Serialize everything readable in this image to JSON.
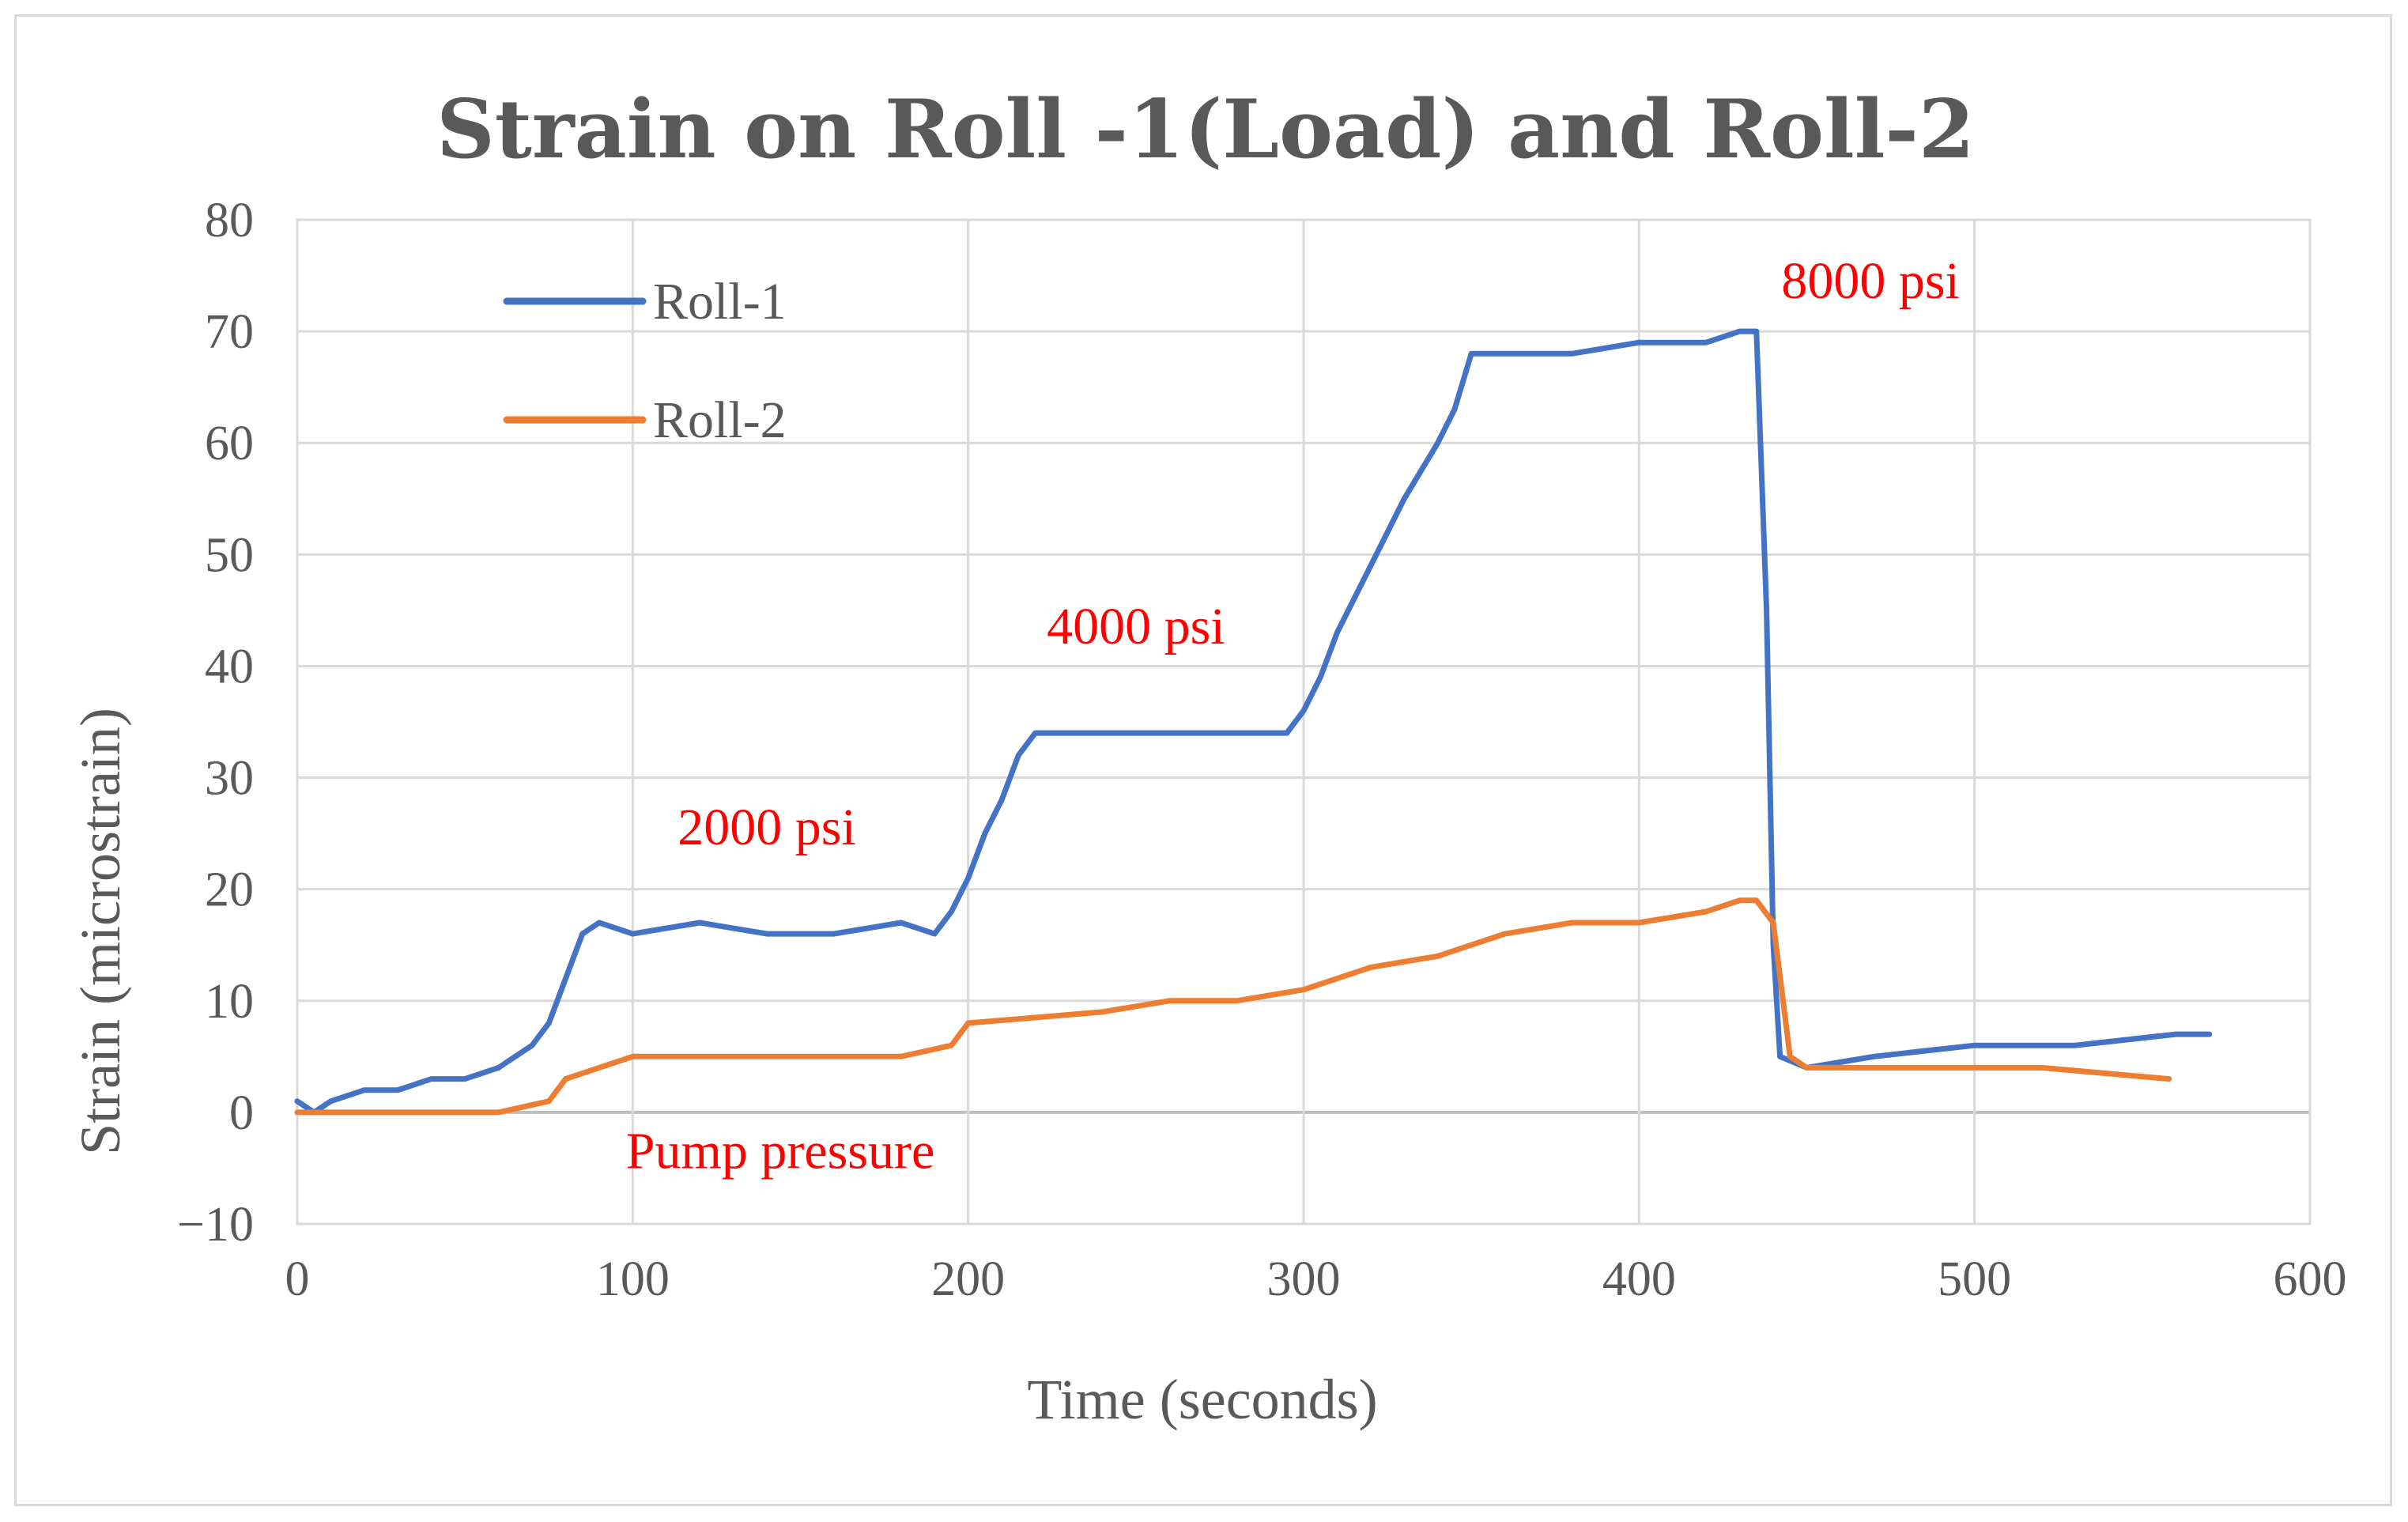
{
  "chart_data": {
    "type": "line",
    "title": "Strain on Roll -1(Load) and Roll-2",
    "xlabel": "Time (seconds)",
    "ylabel": "Strain (microstrain)",
    "xlim": [
      0,
      600
    ],
    "ylim": [
      -10,
      80
    ],
    "x_ticks": [
      "0",
      "100",
      "200",
      "300",
      "400",
      "500",
      "600"
    ],
    "y_ticks": [
      "80",
      "70",
      "60",
      "50",
      "40",
      "30",
      "20",
      "10",
      "0",
      "−10"
    ],
    "grid": true,
    "legend_position": "top-left",
    "series": [
      {
        "name": "Roll-1",
        "color": "#4472c4",
        "x": [
          0,
          5,
          10,
          20,
          30,
          40,
          50,
          60,
          70,
          75,
          80,
          85,
          90,
          100,
          120,
          140,
          160,
          180,
          190,
          195,
          200,
          205,
          210,
          215,
          220,
          240,
          260,
          280,
          295,
          300,
          305,
          310,
          320,
          330,
          340,
          345,
          350,
          360,
          380,
          400,
          420,
          430,
          435,
          438,
          440,
          442,
          450,
          470,
          500,
          530,
          560,
          570
        ],
        "values": [
          1,
          0,
          1,
          2,
          2,
          3,
          3,
          4,
          6,
          8,
          12,
          16,
          17,
          16,
          17,
          16,
          16,
          17,
          16,
          18,
          21,
          25,
          28,
          32,
          34,
          34,
          34,
          34,
          34,
          36,
          39,
          43,
          49,
          55,
          60,
          63,
          68,
          68,
          68,
          69,
          69,
          70,
          70,
          45,
          15,
          5,
          4,
          5,
          6,
          6,
          7,
          7
        ]
      },
      {
        "name": "Roll-2",
        "color": "#ed7d31",
        "x": [
          0,
          20,
          40,
          60,
          75,
          80,
          90,
          100,
          140,
          180,
          195,
          200,
          240,
          260,
          280,
          300,
          320,
          340,
          360,
          380,
          400,
          420,
          430,
          435,
          440,
          445,
          450,
          480,
          520,
          558
        ],
        "values": [
          0,
          0,
          0,
          0,
          1,
          3,
          4,
          5,
          5,
          5,
          6,
          8,
          9,
          10,
          10,
          11,
          13,
          14,
          16,
          17,
          17,
          18,
          19,
          19,
          17,
          5,
          4,
          4,
          4,
          3
        ]
      }
    ],
    "annotations": [
      {
        "text": "2000 psi",
        "x": 140,
        "y": 24,
        "color": "#ff0000"
      },
      {
        "text": "4000 psi",
        "x": 250,
        "y": 42,
        "color": "#ff0000"
      },
      {
        "text": "8000 psi",
        "x": 469,
        "y": 73,
        "color": "#ff0000"
      },
      {
        "text": "Pump pressure",
        "x": 144,
        "y": -5,
        "color": "#ff0000"
      }
    ]
  }
}
